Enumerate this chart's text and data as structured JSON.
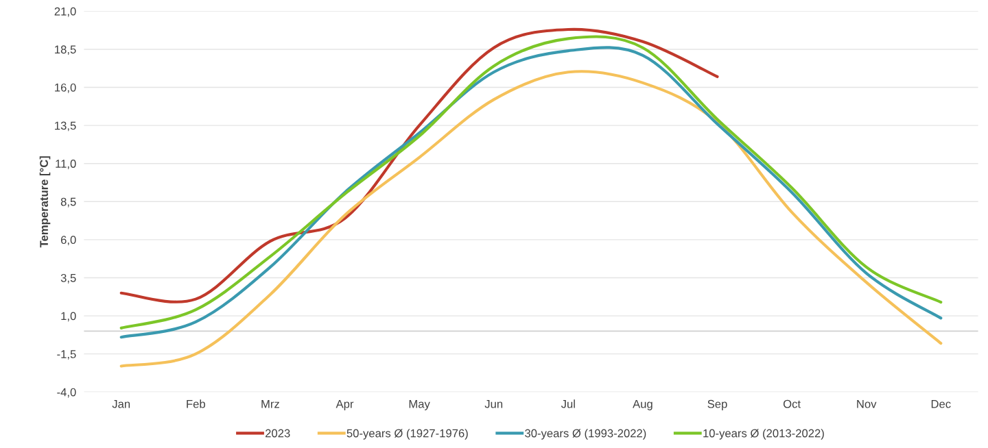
{
  "chart_data": {
    "type": "line",
    "ylabel": "Temperature [°C]",
    "categories": [
      "Jan",
      "Feb",
      "Mrz",
      "Apr",
      "May",
      "Jun",
      "Jul",
      "Aug",
      "Sep",
      "Oct",
      "Nov",
      "Dec"
    ],
    "series": [
      {
        "name": "2023",
        "color": "#c0392b",
        "values": [
          2.5,
          2.1,
          5.9,
          7.4,
          13.5,
          18.6,
          19.8,
          19.0,
          16.7,
          null,
          null,
          null
        ]
      },
      {
        "name": "50-years Ø (1927-1976)",
        "color": "#f5c15a",
        "values": [
          -2.3,
          -1.5,
          2.4,
          7.6,
          11.4,
          15.2,
          17.0,
          16.3,
          13.7,
          7.8,
          3.2,
          -0.8
        ]
      },
      {
        "name": "30-years Ø (1993-2022)",
        "color": "#3a9ab0",
        "values": [
          -0.4,
          0.6,
          4.2,
          9.1,
          13.0,
          17.0,
          18.4,
          18.1,
          13.6,
          9.1,
          3.8,
          0.85
        ]
      },
      {
        "name": "10-years Ø (2013-2022)",
        "color": "#7cc628",
        "values": [
          0.2,
          1.4,
          4.9,
          9.0,
          12.8,
          17.4,
          19.2,
          18.6,
          13.9,
          9.4,
          4.2,
          1.9
        ]
      }
    ],
    "ylim": [
      -4.0,
      21.0
    ],
    "yticks": [
      {
        "value": -4.0,
        "label": "-4,0"
      },
      {
        "value": -1.5,
        "label": "-1,5"
      },
      {
        "value": 1.0,
        "label": "1,0"
      },
      {
        "value": 3.5,
        "label": "3,5"
      },
      {
        "value": 6.0,
        "label": "6,0"
      },
      {
        "value": 8.5,
        "label": "8,5"
      },
      {
        "value": 11.0,
        "label": "11,0"
      },
      {
        "value": 13.5,
        "label": "13,5"
      },
      {
        "value": 16.0,
        "label": "16,0"
      },
      {
        "value": 18.5,
        "label": "18,5"
      },
      {
        "value": 21.0,
        "label": "21,0"
      }
    ],
    "grid": "y",
    "legend": "bottom",
    "marker": "none",
    "line_style": "solid"
  }
}
